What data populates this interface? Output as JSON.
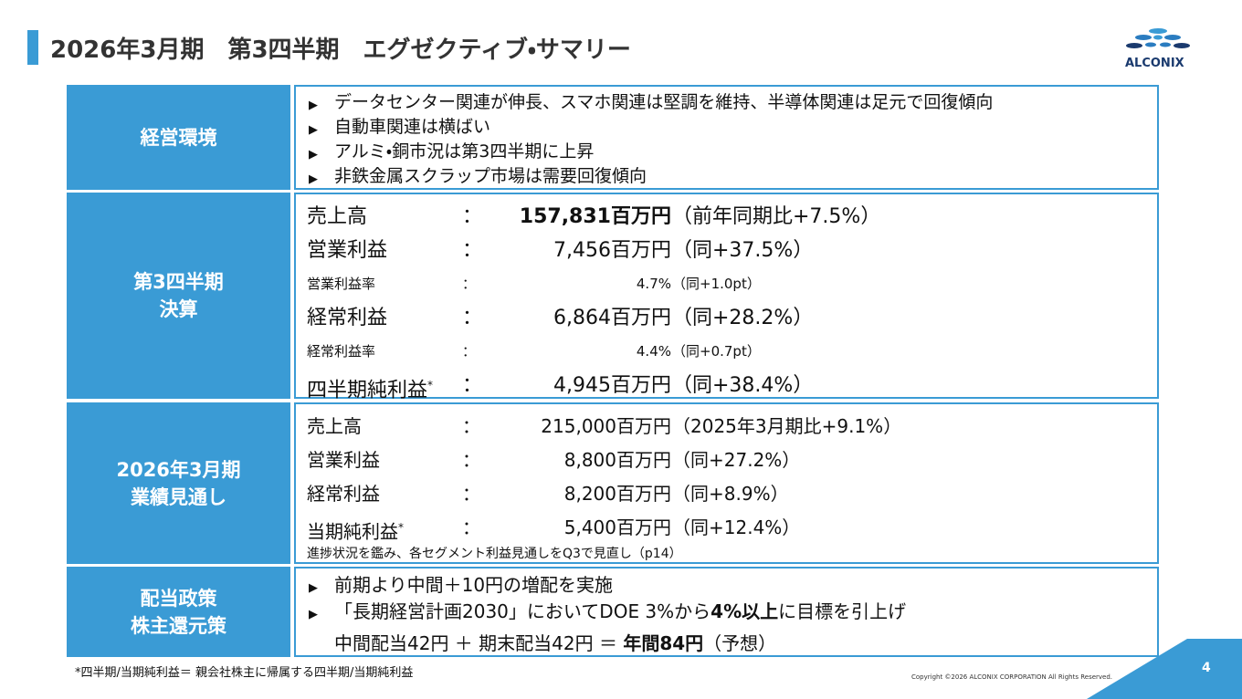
{
  "header": {
    "title": "2026年3月期　第3四半期　エグゼクティブ・サマリー",
    "logo": "ALCONIX"
  },
  "separator": "：",
  "note_mark": "*",
  "sections": [
    {
      "label_lines": [
        "経営環境"
      ],
      "bullets": [
        "データセンター関連が伸長、スマホ関連は堅調を維持、半導体関連は足元で回復傾向",
        "自動車関連は横ばい",
        "アルミ・銅市況は第3四半期に上昇",
        "非鉄金属スクラップ市場は需要回復傾向"
      ]
    },
    {
      "label_lines": [
        "第3四半期",
        "決算"
      ],
      "rows": [
        {
          "name": "売上高",
          "amount": "157,831百万円",
          "note": "（前年同期比+7.5%）",
          "size": "large",
          "bold": true,
          "marked": false
        },
        {
          "name": "営業利益",
          "amount": "7,456百万円",
          "note": "（同+37.5%）",
          "size": "large",
          "bold": false,
          "marked": false
        },
        {
          "name": "営業利益率",
          "amount": "4.7%",
          "note": "（同+1.0pt）",
          "size": "small",
          "bold": false,
          "marked": false
        },
        {
          "name": "経常利益",
          "amount": "6,864百万円",
          "note": "（同+28.2%）",
          "size": "large",
          "bold": false,
          "marked": false
        },
        {
          "name": "経常利益率",
          "amount": "4.4%",
          "note": "（同+0.7pt）",
          "size": "small",
          "bold": false,
          "marked": false
        },
        {
          "name": "四半期純利益",
          "amount": "4,945百万円",
          "note": "（同+38.4%）",
          "size": "large",
          "bold": false,
          "marked": true
        }
      ]
    },
    {
      "label_lines": [
        "2026年3月期",
        "業績見通し"
      ],
      "rows": [
        {
          "name": "売上高",
          "amount": "215,000百万円",
          "note": "（2025年3月期比+9.1%）",
          "size": "medium",
          "bold": false,
          "marked": false
        },
        {
          "name": "営業利益",
          "amount": "8,800百万円",
          "note": "（同+27.2%）",
          "size": "medium",
          "bold": false,
          "marked": false
        },
        {
          "name": "経常利益",
          "amount": "8,200百万円",
          "note": "（同+8.9%）",
          "size": "medium",
          "bold": false,
          "marked": false
        },
        {
          "name": "当期純利益",
          "amount": "5,400百万円",
          "note": "（同+12.4%）",
          "size": "medium",
          "bold": false,
          "marked": true
        }
      ],
      "remark": "進捗状況を鑑み、各セグメント利益見通しをQ3で見直し（p14）"
    },
    {
      "label_lines": [
        "配当政策",
        "株主還元策"
      ],
      "lines": [
        {
          "bullet": true,
          "parts": [
            {
              "text": "前期より中間＋10円の増配を実施",
              "bold": false
            }
          ]
        },
        {
          "bullet": true,
          "parts": [
            {
              "text": "「長期経営計画2030」においてDOE 3%から",
              "bold": false
            },
            {
              "text": "4%以上",
              "bold": true
            },
            {
              "text": "に目標を引上げ",
              "bold": false
            }
          ]
        },
        {
          "bullet": false,
          "parts": [
            {
              "text": "中間配当42円 ＋ 期末配当42円 ＝ ",
              "bold": false
            },
            {
              "text": "年間84円",
              "bold": true
            },
            {
              "text": "（予想）",
              "bold": false
            }
          ]
        }
      ]
    }
  ],
  "footer": {
    "note": "*四半期/当期純利益＝ 親会社株主に帰属する四半期/当期純利益",
    "copyright": "Copyright ©2026 ALCONIX CORPORATION All Rights Reserved.",
    "page": "4"
  }
}
